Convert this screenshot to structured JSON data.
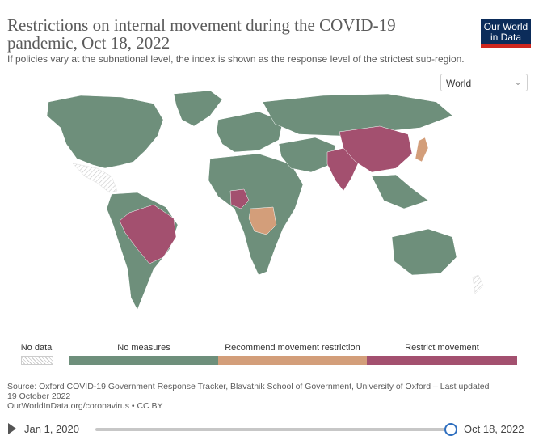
{
  "header": {
    "title": "Restrictions on internal movement during the COVID-19 pandemic, Oct 18, 2022",
    "subtitle": "If policies vary at the subnational level, the index is shown as the response level of the strictest sub-region.",
    "logo": "Our World in Data"
  },
  "region_select": {
    "value": "World",
    "icon": "chevron-down-icon"
  },
  "legend": {
    "no_data": "No data",
    "categories": [
      {
        "label": "No measures",
        "color": "#6e8f7b"
      },
      {
        "label": "Recommend movement restriction",
        "color": "#d39e7a"
      },
      {
        "label": "Restrict movement",
        "color": "#a3506f"
      }
    ]
  },
  "map_colors": {
    "no_measures": "#6e8f7b",
    "recommend": "#d39e7a",
    "restrict": "#a3506f",
    "no_data": "#e6e6e6"
  },
  "regions": [
    {
      "name": "North America",
      "status": "no_measures"
    },
    {
      "name": "Greenland",
      "status": "no_measures"
    },
    {
      "name": "Mexico",
      "status": "no_data"
    },
    {
      "name": "Brazil",
      "status": "restrict"
    },
    {
      "name": "South America",
      "status": "no_measures"
    },
    {
      "name": "Europe",
      "status": "no_measures"
    },
    {
      "name": "Africa",
      "status": "no_measures"
    },
    {
      "name": "Nigeria",
      "status": "restrict"
    },
    {
      "name": "DR Congo",
      "status": "recommend"
    },
    {
      "name": "Russia",
      "status": "no_measures"
    },
    {
      "name": "China",
      "status": "restrict"
    },
    {
      "name": "India",
      "status": "restrict"
    },
    {
      "name": "Japan",
      "status": "recommend"
    },
    {
      "name": "Australia",
      "status": "no_measures"
    }
  ],
  "source": {
    "line1": "Source: Oxford COVID-19 Government Response Tracker, Blavatnik School of Government, University of Oxford – Last updated 19 October 2022",
    "line2": "OurWorldInData.org/coronavirus • CC BY"
  },
  "timeline": {
    "start": "Jan 1, 2020",
    "end": "Oct 18, 2022",
    "play_icon": "play-icon"
  }
}
